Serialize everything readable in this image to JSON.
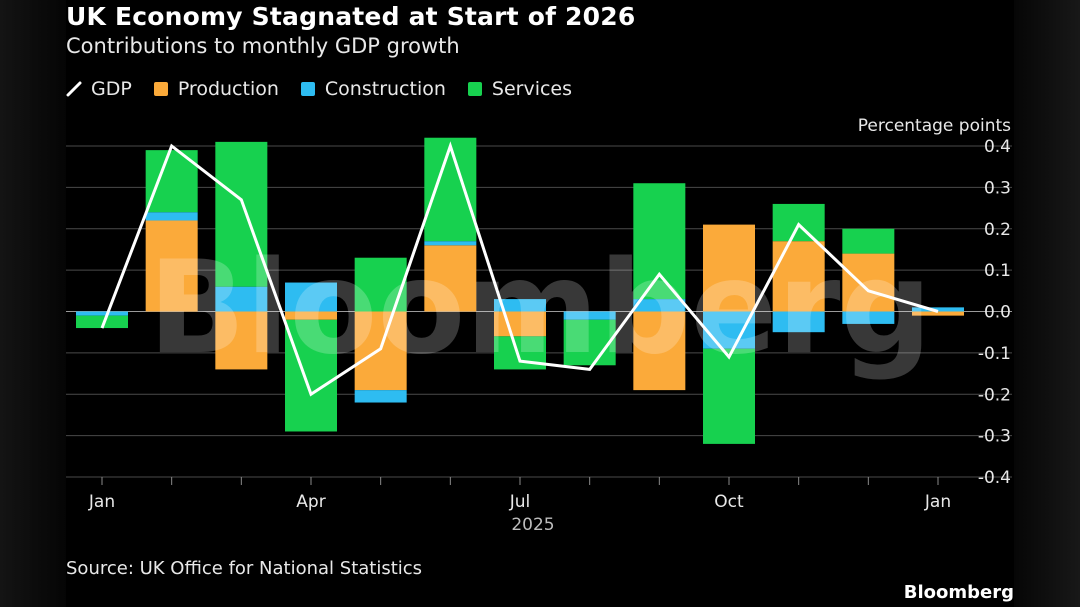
{
  "header": {
    "title": "UK Economy Stagnated at Start of 2026",
    "subtitle": "Contributions to monthly GDP growth"
  },
  "legend": [
    {
      "label": "GDP",
      "color": "#ffffff",
      "kind": "line"
    },
    {
      "label": "Production",
      "color": "#fbaa3a",
      "kind": "bar"
    },
    {
      "label": "Construction",
      "color": "#2ebcf1",
      "kind": "bar"
    },
    {
      "label": "Services",
      "color": "#17d14f",
      "kind": "bar"
    }
  ],
  "footer": {
    "source": "Source: UK Office for National Statistics",
    "brand": "Bloomberg"
  },
  "watermark": "Bloomberg",
  "chart_data": {
    "type": "bar",
    "stacked": true,
    "ylabel": "Percentage points",
    "ylim": [
      -0.4,
      0.4
    ],
    "yticks": [
      0.4,
      0.3,
      0.2,
      0.1,
      0.0,
      -0.1,
      -0.2,
      -0.3,
      -0.4
    ],
    "ytick_labels": [
      "0.4",
      "0.3",
      "0.2",
      "0.1",
      "0.0",
      "-0.1",
      "-0.2",
      "-0.3",
      "-0.4"
    ],
    "categories": [
      "2025-01",
      "2025-02",
      "2025-03",
      "2025-04",
      "2025-05",
      "2025-06",
      "2025-07",
      "2025-08",
      "2025-09",
      "2025-10",
      "2025-11",
      "2025-12",
      "2026-01"
    ],
    "x_tick_labels": [
      {
        "index": 0,
        "label": "Jan"
      },
      {
        "index": 3,
        "label": "Apr"
      },
      {
        "index": 6,
        "label": "Jul"
      },
      {
        "index": 9,
        "label": "Oct"
      },
      {
        "index": 12,
        "label": "Jan"
      }
    ],
    "year_label": {
      "index": 6,
      "label": "2025"
    },
    "series": [
      {
        "name": "Production",
        "color": "#fbaa3a",
        "values": [
          0.0,
          0.22,
          -0.14,
          -0.02,
          -0.19,
          0.16,
          -0.06,
          0.0,
          -0.19,
          0.21,
          0.17,
          0.14,
          -0.01
        ]
      },
      {
        "name": "Construction",
        "color": "#2ebcf1",
        "values": [
          -0.01,
          0.02,
          0.06,
          0.07,
          -0.03,
          0.01,
          0.03,
          -0.02,
          0.03,
          -0.09,
          -0.05,
          -0.03,
          0.01
        ]
      },
      {
        "name": "Services",
        "color": "#17d14f",
        "values": [
          -0.03,
          0.15,
          0.35,
          -0.27,
          0.13,
          0.25,
          -0.08,
          -0.11,
          0.28,
          -0.23,
          0.09,
          0.06,
          0.0
        ]
      }
    ],
    "gdp": {
      "name": "GDP",
      "color": "#ffffff",
      "values": [
        -0.04,
        0.4,
        0.27,
        -0.2,
        -0.09,
        0.4,
        -0.12,
        -0.14,
        0.09,
        -0.11,
        0.21,
        0.05,
        0.0
      ]
    }
  }
}
